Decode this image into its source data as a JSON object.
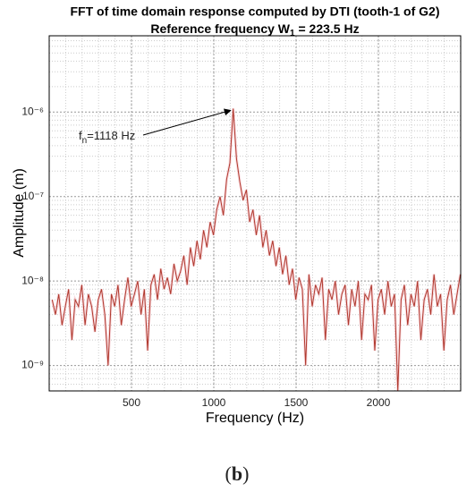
{
  "chart_data": {
    "type": "line",
    "title": "FFT of time domain response computed by DTI (tooth-1 of G2)",
    "subtitle": [
      "Reference frequency W",
      "1",
      " = 223.5 Hz"
    ],
    "xlabel": "Frequency (Hz)",
    "ylabel": "Amplitude (m)",
    "annotation": {
      "text": [
        "f",
        "n",
        "=1118 Hz"
      ],
      "index": 55
    },
    "caption": [
      "(",
      "b",
      ")"
    ],
    "x": [
      18,
      38,
      58,
      78,
      98,
      118,
      138,
      158,
      178,
      198,
      218,
      238,
      258,
      278,
      298,
      318,
      338,
      358,
      378,
      398,
      418,
      438,
      458,
      478,
      498,
      518,
      538,
      558,
      578,
      598,
      618,
      638,
      658,
      678,
      698,
      718,
      738,
      758,
      778,
      798,
      818,
      838,
      858,
      878,
      898,
      918,
      938,
      958,
      978,
      998,
      1018,
      1038,
      1058,
      1078,
      1098,
      1118,
      1138,
      1158,
      1178,
      1198,
      1218,
      1238,
      1258,
      1278,
      1298,
      1318,
      1338,
      1358,
      1378,
      1398,
      1418,
      1438,
      1458,
      1478,
      1498,
      1518,
      1538,
      1558,
      1578,
      1598,
      1618,
      1638,
      1658,
      1678,
      1698,
      1718,
      1738,
      1758,
      1778,
      1798,
      1818,
      1838,
      1858,
      1878,
      1898,
      1918,
      1938,
      1958,
      1978,
      1998,
      2018,
      2038,
      2058,
      2078,
      2098,
      2118,
      2138,
      2158,
      2178,
      2198,
      2218,
      2238,
      2258,
      2278,
      2298,
      2318,
      2338,
      2358,
      2378,
      2398,
      2418,
      2438,
      2458,
      2478,
      2498
    ],
    "values": [
      6e-09,
      4e-09,
      7e-09,
      3e-09,
      5e-09,
      8e-09,
      2e-09,
      6e-09,
      5e-09,
      9e-09,
      3e-09,
      7e-09,
      5e-09,
      2.5e-09,
      6e-09,
      8e-09,
      4e-09,
      1e-09,
      7e-09,
      5e-09,
      9e-09,
      3e-09,
      6e-09,
      1.1e-08,
      5e-09,
      7e-09,
      1e-08,
      4e-09,
      8e-09,
      1.5e-09,
      9e-09,
      1.2e-08,
      6e-09,
      1.4e-08,
      8e-09,
      1.1e-08,
      7e-09,
      1.6e-08,
      1e-08,
      1.3e-08,
      2e-08,
      9e-09,
      2.5e-08,
      1.5e-08,
      3e-08,
      1.8e-08,
      4e-08,
      2.5e-08,
      5e-08,
      3.5e-08,
      7e-08,
      1e-07,
      6e-08,
      1.6e-07,
      2.5e-07,
      1.1e-06,
      2.8e-07,
      1.5e-07,
      9e-08,
      1.2e-07,
      5e-08,
      7e-08,
      3.5e-08,
      6e-08,
      2.5e-08,
      4e-08,
      2e-08,
      3e-08,
      1.5e-08,
      2.5e-08,
      1.2e-08,
      2e-08,
      9e-09,
      1.4e-08,
      6e-09,
      1.1e-08,
      8e-09,
      1e-09,
      1.2e-08,
      5e-09,
      9e-09,
      7e-09,
      1.1e-08,
      2e-09,
      8e-09,
      6e-09,
      1e-08,
      4e-09,
      7e-09,
      9e-09,
      3e-09,
      8e-09,
      5e-09,
      1e-08,
      2e-09,
      7e-09,
      6e-09,
      9e-09,
      1.5e-09,
      6e-09,
      8e-09,
      4e-09,
      1e-08,
      5e-09,
      7e-09,
      5e-10,
      6e-09,
      9e-09,
      3e-09,
      7e-09,
      5e-09,
      1e-08,
      2e-09,
      6e-09,
      8e-09,
      4e-09,
      1.2e-08,
      5e-09,
      7e-09,
      1.5e-09,
      6e-09,
      9e-09,
      4e-09,
      7e-09,
      1.2e-08
    ],
    "color": "#b0392e",
    "xlim": [
      0,
      2500
    ],
    "xticks": [
      500,
      1000,
      1500,
      2000
    ],
    "ylim": [
      5e-10,
      8e-06
    ],
    "ylog": true,
    "yticks": [
      {
        "value": 1e-09,
        "label": "10⁻⁹"
      },
      {
        "value": 1e-08,
        "label": "10⁻⁸"
      },
      {
        "value": 1e-07,
        "label": "10⁻⁷"
      },
      {
        "value": 1e-06,
        "label": "10⁻⁶"
      }
    ],
    "grid": true,
    "minor_grid": true
  }
}
